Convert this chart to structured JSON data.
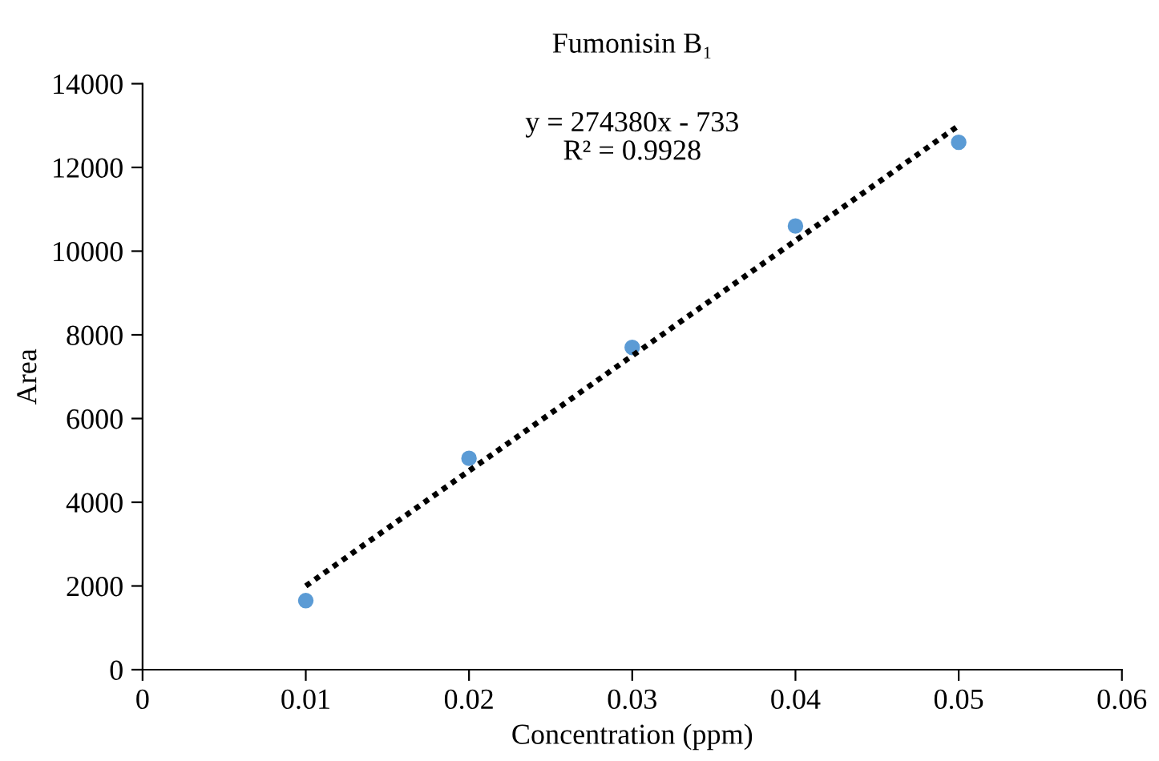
{
  "chart_data": {
    "type": "scatter",
    "title": "Fumonisin B₁",
    "xlabel": "Concentration (ppm)",
    "ylabel": "Area",
    "xlim": [
      0,
      0.06
    ],
    "xticks": [
      0,
      0.01,
      0.02,
      0.03,
      0.04,
      0.05,
      0.06
    ],
    "ylim": [
      0,
      14000
    ],
    "yticks": [
      0,
      2000,
      4000,
      6000,
      8000,
      10000,
      12000,
      14000
    ],
    "grid": false,
    "series": [
      {
        "color": "#5b9bd5",
        "marker": "circle",
        "x": [
          0.01,
          0.02,
          0.03,
          0.04,
          0.05
        ],
        "values": [
          1650,
          5050,
          7700,
          10600,
          12600
        ]
      },
      {
        "type": "line",
        "color": "#000000",
        "marker": "none",
        "line_style": "dotted",
        "x": [
          0.01,
          0.05
        ],
        "values": [
          2000,
          13000
        ]
      }
    ],
    "annotations": [
      "y = 274380x - 733\nR² = 0.9928"
    ]
  }
}
